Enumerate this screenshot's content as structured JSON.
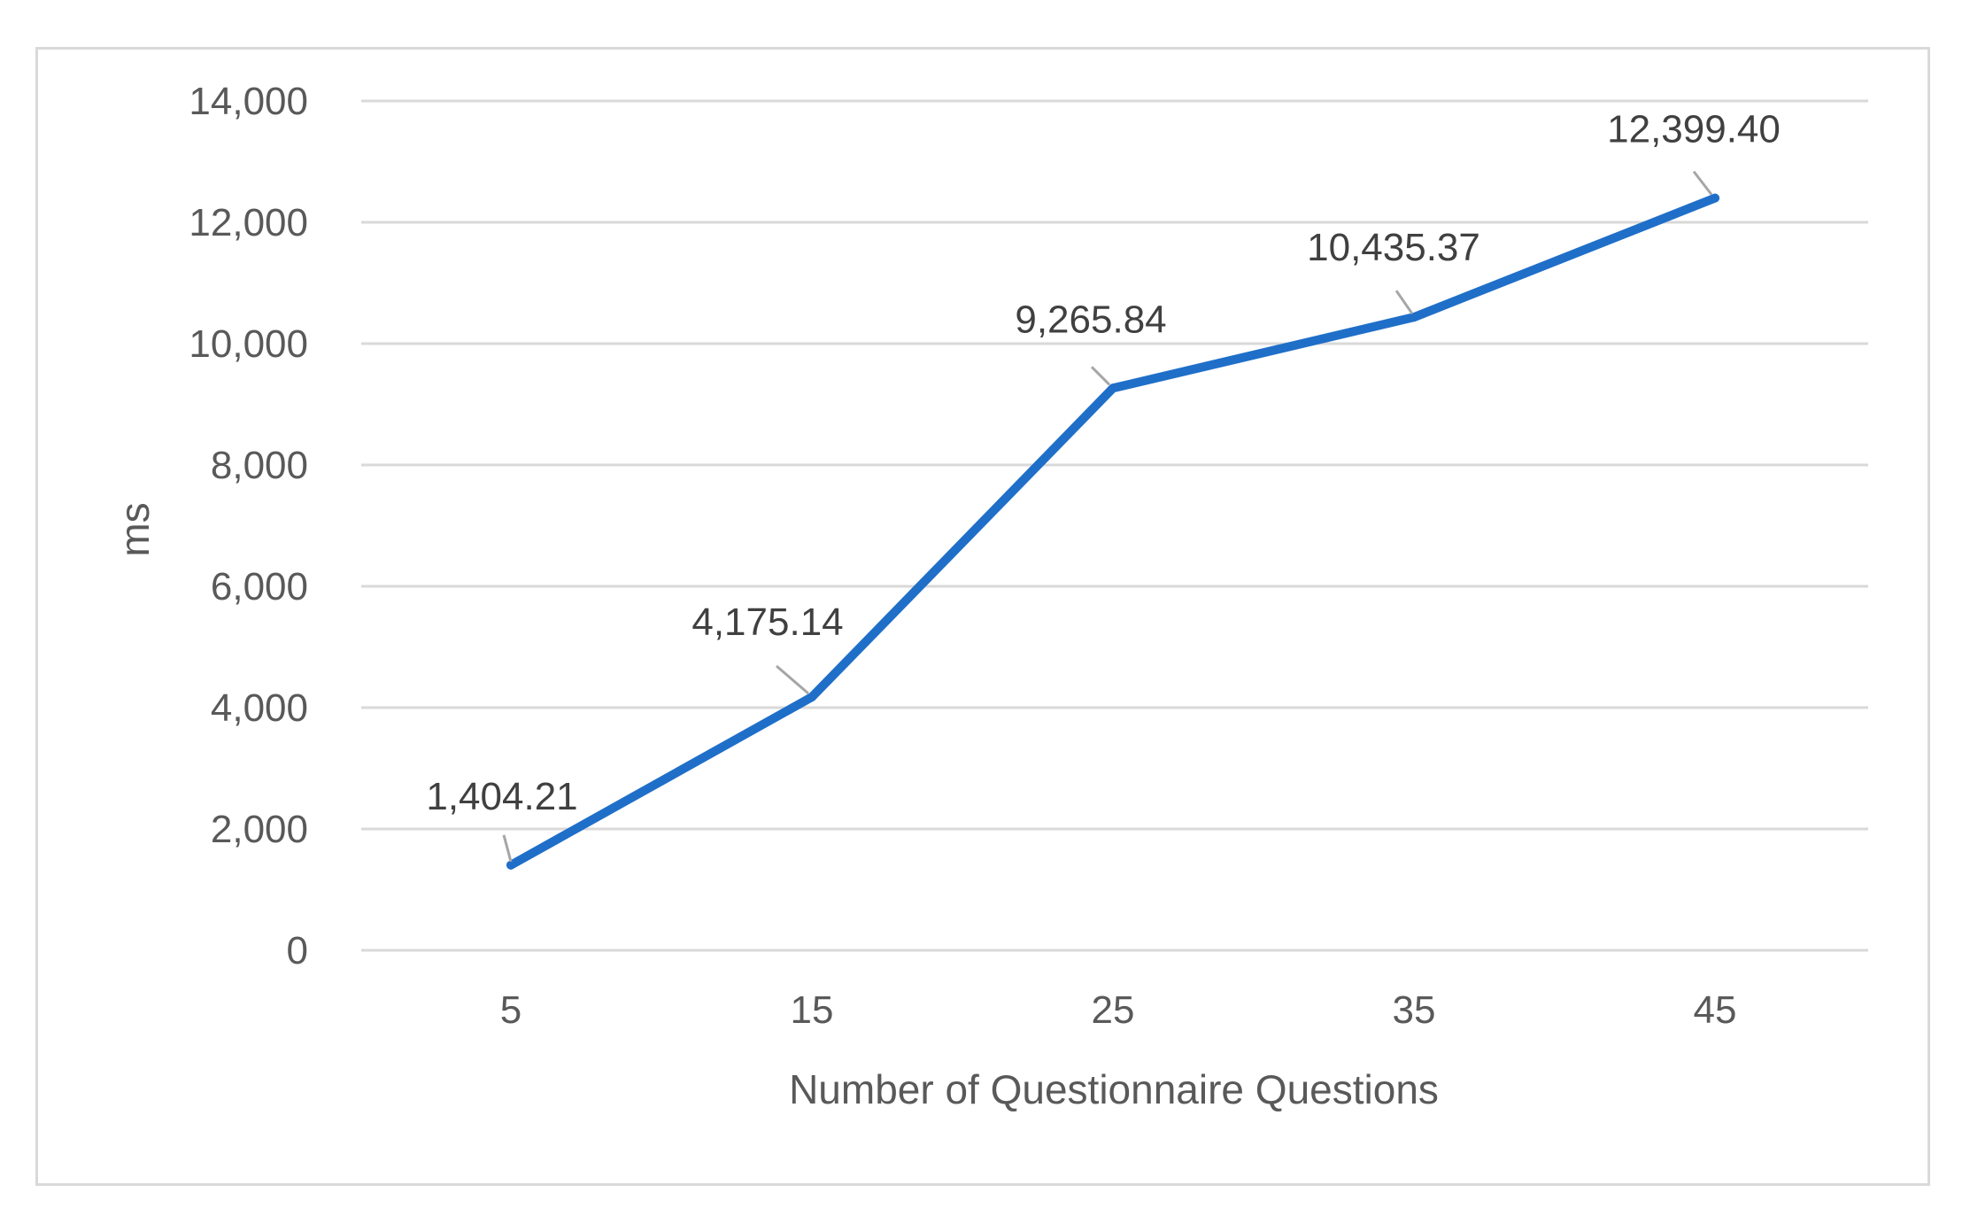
{
  "chart_data": {
    "type": "line",
    "title": "",
    "xlabel": "Number of Questionnaire Questions",
    "ylabel": "ms",
    "categories": [
      "5",
      "15",
      "25",
      "35",
      "45"
    ],
    "series": [
      {
        "values": [
          1404.21,
          4175.14,
          9265.84,
          10435.37,
          12399.4
        ],
        "data_labels": [
          "1,404.21",
          "4,175.14",
          "9,265.84",
          "10,435.37",
          "12,399.40"
        ]
      }
    ],
    "y_ticks": [
      "0",
      "2,000",
      "4,000",
      "6,000",
      "8,000",
      "10,000",
      "12,000",
      "14,000"
    ],
    "ylim": [
      0,
      14000
    ],
    "grid": true,
    "legend": "none",
    "colors": {
      "line": "#1f6fc9",
      "grid": "#d9d9d9",
      "leader": "#a6a6a6"
    }
  }
}
